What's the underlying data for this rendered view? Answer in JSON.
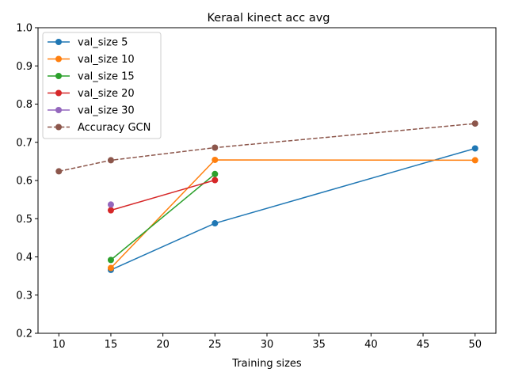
{
  "chart_data": {
    "type": "line",
    "title": "Keraal kinect acc avg",
    "xlabel": "Training sizes",
    "ylabel": "",
    "xlim": [
      8.0,
      52.0
    ],
    "ylim": [
      0.2,
      1.0
    ],
    "xticks": [
      10,
      15,
      20,
      25,
      30,
      35,
      40,
      45,
      50
    ],
    "yticks": [
      0.2,
      0.3,
      0.4,
      0.5,
      0.6,
      0.7,
      0.8,
      0.9,
      1.0
    ],
    "ytick_labels": [
      "0.2",
      "0.3",
      "0.4",
      "0.5",
      "0.6",
      "0.7",
      "0.8",
      "0.9",
      "1.0"
    ],
    "grid": false,
    "legend_position": "top-left",
    "series": [
      {
        "name": "val_size 5",
        "color": "#1f77b4",
        "style": "solid",
        "x": [
          15,
          25,
          50
        ],
        "y": [
          0.366,
          0.488,
          0.684
        ]
      },
      {
        "name": "val_size 10",
        "color": "#ff7f0e",
        "style": "solid",
        "x": [
          15,
          25,
          50
        ],
        "y": [
          0.371,
          0.654,
          0.653
        ]
      },
      {
        "name": "val_size 15",
        "color": "#2ca02c",
        "style": "solid",
        "x": [
          15,
          25
        ],
        "y": [
          0.392,
          0.617
        ]
      },
      {
        "name": "val_size 20",
        "color": "#d62728",
        "style": "solid",
        "x": [
          15,
          25
        ],
        "y": [
          0.522,
          0.601
        ]
      },
      {
        "name": "val_size 30",
        "color": "#9467bd",
        "style": "solid",
        "x": [
          15
        ],
        "y": [
          0.537
        ]
      },
      {
        "name": "Accuracy GCN",
        "color": "#8c564b",
        "style": "dashed",
        "x": [
          10,
          15,
          25,
          50
        ],
        "y": [
          0.624,
          0.653,
          0.686,
          0.749
        ]
      }
    ]
  }
}
